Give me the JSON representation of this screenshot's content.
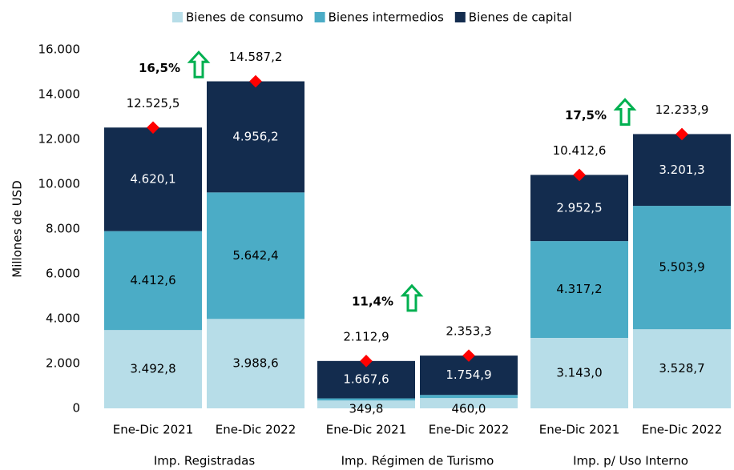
{
  "chart_data": {
    "type": "stacked_bar",
    "y_label": "Millones de USD",
    "categories": [
      "Ene-Dic 2021",
      "Ene-Dic 2022",
      "Ene-Dic 2021",
      "Ene-Dic 2022",
      "Ene-Dic 2021",
      "Ene-Dic 2022"
    ],
    "groups": [
      {
        "name": "Imp. Registradas",
        "growth": "16,5%"
      },
      {
        "name": "Imp. Régimen de Turismo",
        "growth": "11,4%"
      },
      {
        "name": "Imp. p/ Uso Interno",
        "growth": "17,5%"
      }
    ],
    "series": [
      {
        "name": "Bienes de consumo",
        "color": "#b7dde8",
        "label_color": "#000000",
        "values": [
          3492.8,
          3988.6,
          349.8,
          460.0,
          3143.0,
          3528.7
        ],
        "value_labels": [
          "3.492,8",
          "3.988,6",
          "349,8",
          "460,0",
          "3.143,0",
          "3.528,7"
        ]
      },
      {
        "name": "Bienes intermedios",
        "color": "#4bacc6",
        "label_color": "#000000",
        "values": [
          4412.6,
          5642.4,
          95.5,
          138.4,
          4317.2,
          5503.9
        ],
        "value_labels": [
          "4.412,6",
          "5.642,4",
          null,
          null,
          "4.317,2",
          "5.503,9"
        ]
      },
      {
        "name": "Bienes de capital",
        "color": "#132c4e",
        "label_color": "#ffffff",
        "values": [
          4620.1,
          4956.2,
          1667.6,
          1754.9,
          2952.5,
          3201.3
        ],
        "value_labels": [
          "4.620,1",
          "4.956,2",
          "1.667,6",
          "1.754,9",
          "2.952,5",
          "3.201,3"
        ]
      }
    ],
    "totals": {
      "color": "#ff0000",
      "values": [
        12525.5,
        14587.2,
        2112.9,
        2353.3,
        10412.6,
        12233.9
      ],
      "value_labels": [
        "12.525,5",
        "14.587,2",
        "2.112,9",
        "2.353,3",
        "10.412,6",
        "12.233,9"
      ]
    },
    "growth_color": "#00b050",
    "ylim": [
      0,
      16000
    ],
    "yticks": [
      0,
      {
        "value": 2000,
        "label": "2.000"
      },
      {
        "value": 4000,
        "label": "4.000"
      },
      {
        "value": 6000,
        "label": "6.000"
      },
      {
        "value": 8000,
        "label": "8.000"
      },
      {
        "value": 10000,
        "label": "10.000"
      },
      {
        "value": 12000,
        "label": "12.000"
      },
      {
        "value": 14000,
        "label": "14.000"
      },
      {
        "value": 16000,
        "label": "16.000"
      }
    ],
    "legend": "top"
  }
}
